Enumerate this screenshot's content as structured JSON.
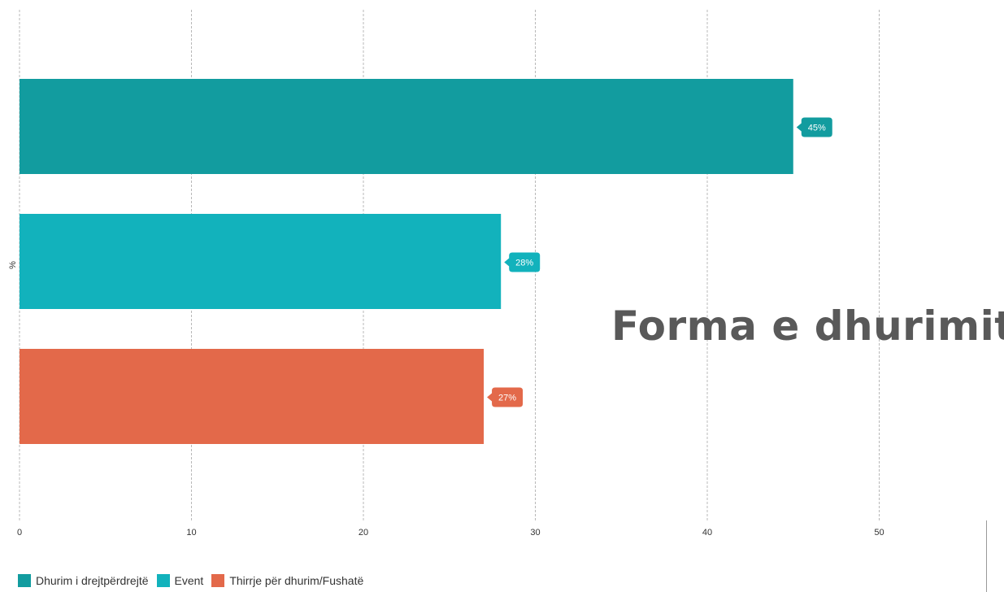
{
  "chart_data": {
    "type": "bar",
    "orientation": "horizontal",
    "title": "Forma e dhurimit",
    "ylabel": "%",
    "categories": [
      "Dhurim i drejtpërdrejtë",
      "Event",
      "Thirrje për dhurim/Fushatë"
    ],
    "values": [
      45,
      28,
      27
    ],
    "value_labels": [
      "45%",
      "28%",
      "27%"
    ],
    "colors": [
      "#129c9f",
      "#12b2bc",
      "#e3694a"
    ],
    "xlim": [
      0,
      57
    ],
    "xticks": [
      0,
      10,
      20,
      30,
      40,
      50
    ],
    "grid": "vertical dashed",
    "legend": "bottom-left"
  }
}
